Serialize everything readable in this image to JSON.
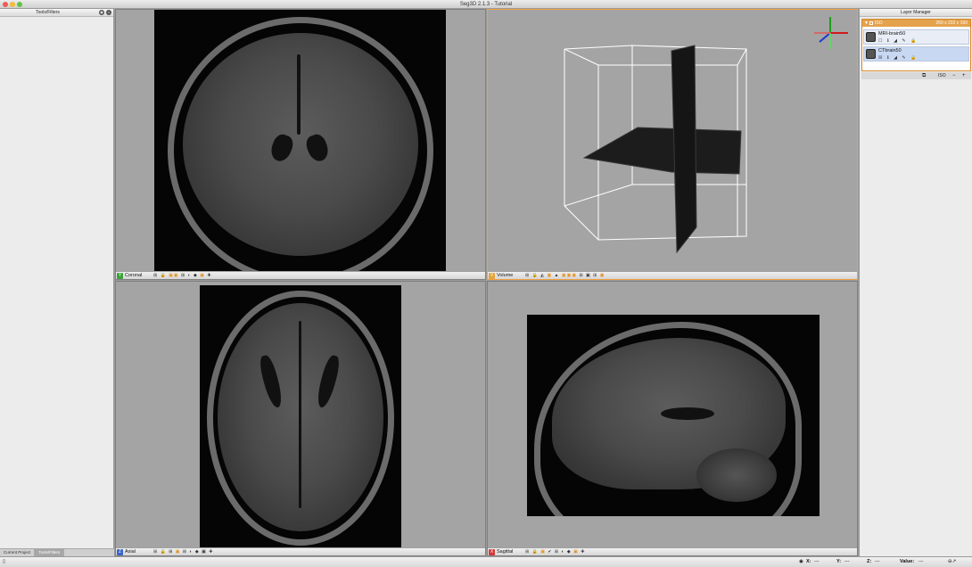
{
  "window": {
    "title": "Seg3D 2.1.3 - Tutorial"
  },
  "left_panel": {
    "title": "Tools/Filters",
    "tabs": [
      {
        "label": "Current Project"
      },
      {
        "label": "Tools/Filters"
      }
    ]
  },
  "right_panel": {
    "title": "Layer Manager",
    "group": {
      "name": "ISO",
      "dimensions": "260 x 232 x 160"
    },
    "layers": [
      {
        "name": "MRI-brain50"
      },
      {
        "name": "CTbrain50"
      }
    ],
    "footer": {
      "iso_label": "ISO",
      "remove": "−",
      "add": "+"
    }
  },
  "viewers": {
    "coronal": {
      "badge": "Y",
      "label": "Coronal",
      "badge_color": "#3aa23a"
    },
    "volume": {
      "badge": "V",
      "label": "Volume",
      "badge_color": "#e2a33a"
    },
    "axial": {
      "badge": "Z",
      "label": "Axial",
      "badge_color": "#3a64c8"
    },
    "sagittal": {
      "badge": "X",
      "label": "Sagittal",
      "badge_color": "#d23a3a"
    }
  },
  "status": {
    "x_label": "X:",
    "x_value": "---",
    "y_label": "Y:",
    "y_value": "---",
    "z_label": "Z:",
    "z_value": "---",
    "value_label": "Value:",
    "value_value": "---"
  }
}
